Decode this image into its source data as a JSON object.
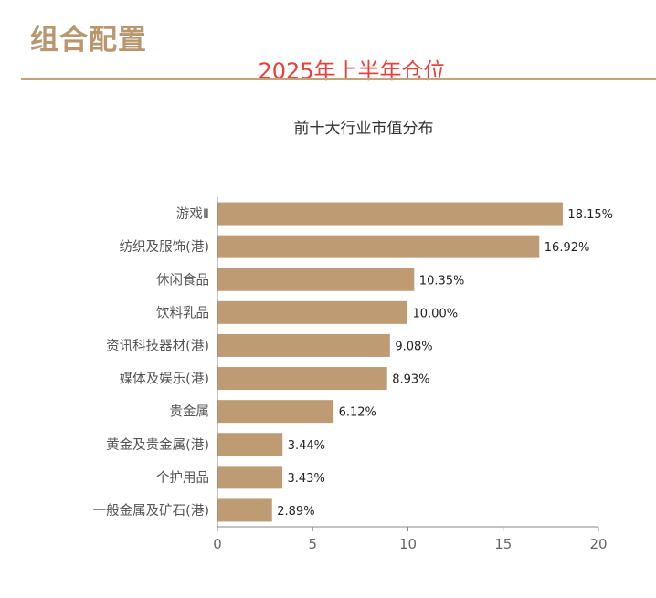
{
  "header": {
    "section_title": "组合配置",
    "subtitle": "2025年上半年仓位"
  },
  "colors": {
    "bar": "#bf9b74",
    "bar_edge": "#ffffff",
    "axis": "#888888",
    "category_text": "#555555",
    "value_text": "#222222",
    "tick_text": "#666666"
  },
  "chart_data": {
    "type": "bar",
    "orientation": "horizontal",
    "title": "前十大行业市值分布",
    "categories": [
      "游戏Ⅱ",
      "纺织及服饰(港)",
      "休闲食品",
      "饮料乳品",
      "资讯科技器材(港)",
      "媒体及娱乐(港)",
      "贵金属",
      "黄金及贵金属(港)",
      "个护用品",
      "一般金属及矿石(港)"
    ],
    "values": [
      18.15,
      16.92,
      10.35,
      10.0,
      9.08,
      8.93,
      6.12,
      3.44,
      3.43,
      2.89
    ],
    "value_labels": [
      "18.15%",
      "16.92%",
      "10.35%",
      "10.00%",
      "9.08%",
      "8.93%",
      "6.12%",
      "3.44%",
      "3.43%",
      "2.89%"
    ],
    "xlim": [
      0,
      20
    ],
    "xticks": [
      0,
      5,
      10,
      15,
      20
    ],
    "xlabel": "",
    "ylabel": "",
    "grid": false,
    "legend": "none"
  }
}
